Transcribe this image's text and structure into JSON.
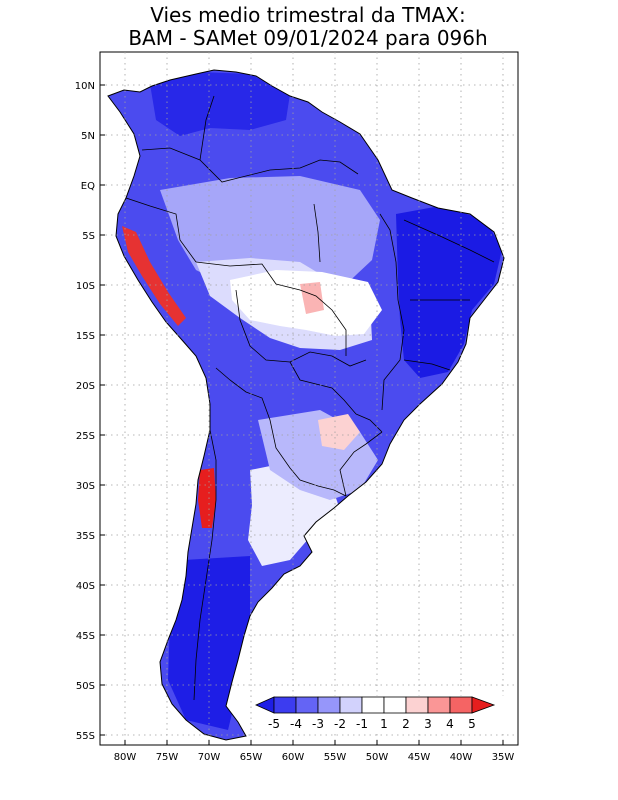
{
  "title": {
    "line1": "Vies medio trimestral da TMAX:",
    "line2": "BAM - SAMet 09/01/2024  para 096h"
  },
  "axes": {
    "lat_ticks": [
      "10N",
      "5N",
      "EQ",
      "5S",
      "10S",
      "15S",
      "20S",
      "25S",
      "30S",
      "35S",
      "40S",
      "45S",
      "50S",
      "55S"
    ],
    "lon_ticks": [
      "80W",
      "75W",
      "70W",
      "65W",
      "60W",
      "55W",
      "50W",
      "45W",
      "40W",
      "35W"
    ],
    "lat_range": [
      10.8,
      -55.8
    ],
    "lon_range": [
      -82.5,
      -34.2
    ],
    "grid": "dotted"
  },
  "colorbar": {
    "labels": [
      "-5",
      "-4",
      "-3",
      "-2",
      "-1",
      "1",
      "2",
      "3",
      "4",
      "5"
    ],
    "colors": [
      "#1e1ee6",
      "#3c3cf0",
      "#6464f5",
      "#9696fa",
      "#d2d2fc",
      "#ffffff",
      "#fcd2d2",
      "#fa9696",
      "#f56464",
      "#e61e1e"
    ],
    "placement": "bottom-right"
  },
  "colors": {
    "cold_strong": "#1e1ee6",
    "cold_medium": "#5a5af2",
    "cold_light": "#a0a0fa",
    "cold_pale": "#d4d4fc",
    "neutral": "#ffffff",
    "warm_pale": "#fcd2d2",
    "warm_strong": "#e61e1e",
    "border": "#000000"
  }
}
